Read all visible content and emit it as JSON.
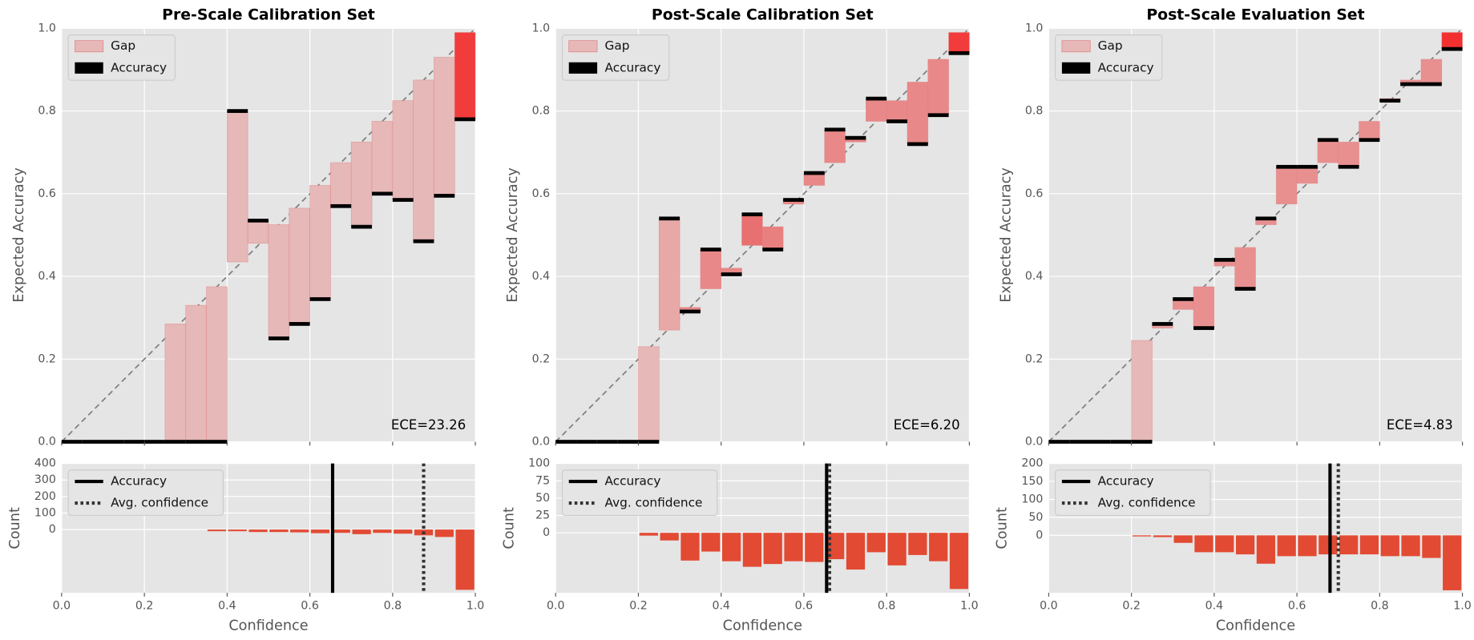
{
  "chart_data": [
    {
      "type": "reliability",
      "title": "Pre-Scale Calibration Set",
      "ylabel": "Expected Accuracy",
      "ece_label": "ECE=23.26",
      "legend": [
        "Gap",
        "Accuracy"
      ],
      "gap_legend_color": "#e6b8b8",
      "accuracy_color": "#000000",
      "bins": [
        0,
        0.05,
        0.1,
        0.15,
        0.2,
        0.25,
        0.3,
        0.35,
        0.4,
        0.45,
        0.5,
        0.55,
        0.6,
        0.65,
        0.7,
        0.75,
        0.8,
        0.85,
        0.9,
        0.95,
        1.0
      ],
      "accuracy": [
        0,
        0,
        0,
        0,
        0,
        0,
        0,
        0,
        0.8,
        0.535,
        0.25,
        0.285,
        0.345,
        0.57,
        0.52,
        0.6,
        0.585,
        0.485,
        0.595,
        0.78
      ],
      "confidence": [
        null,
        null,
        null,
        null,
        null,
        0.285,
        0.33,
        0.375,
        0.435,
        0.48,
        0.525,
        0.565,
        0.62,
        0.675,
        0.725,
        0.775,
        0.825,
        0.875,
        0.93,
        0.99
      ],
      "gap_colors": [
        null,
        null,
        null,
        null,
        null,
        "#e6b8b8",
        "#e6b8b8",
        "#e6b8b8",
        "#e6b8b8",
        "#e6b8b8",
        "#e6b8b8",
        "#e6b8b8",
        "#e6b8b8",
        "#e6b8b8",
        "#e6b8b8",
        "#e6b8b8",
        "#e6b8b8",
        "#e6b8b8",
        "#e6b8b8",
        "#f23b3b"
      ],
      "xlim": [
        0,
        1
      ],
      "ylim": [
        0,
        1
      ],
      "xticks": [
        {
          "value": 0,
          "label": "0.0"
        },
        {
          "value": 0.2,
          "label": "0.2"
        },
        {
          "value": 0.4,
          "label": "0.4"
        },
        {
          "value": 0.6,
          "label": "0.6"
        },
        {
          "value": 0.8,
          "label": "0.8"
        },
        {
          "value": 1,
          "label": "1.0"
        }
      ],
      "yticks": [
        {
          "value": 0,
          "label": "0.0"
        },
        {
          "value": 0.2,
          "label": "0.2"
        },
        {
          "value": 0.4,
          "label": "0.4"
        },
        {
          "value": 0.6,
          "label": "0.6"
        },
        {
          "value": 0.8,
          "label": "0.8"
        },
        {
          "value": 1,
          "label": "1.0"
        }
      ],
      "hist": {
        "type": "histogram",
        "xlabel": "Confidence",
        "ylabel": "Count",
        "color": "#e24a33",
        "counts": [
          0,
          0,
          0,
          0,
          0,
          0,
          0,
          -10,
          -10,
          -15,
          -15,
          -17,
          -22,
          -20,
          -28,
          -20,
          -25,
          -35,
          -45,
          -365
        ],
        "ylim": [
          -383,
          400
        ],
        "yticks": [
          0,
          100,
          200,
          300,
          400
        ],
        "accuracy": 0.655,
        "avg_confidence": 0.875,
        "legend": [
          "Accuracy",
          "Avg. confidence"
        ]
      }
    },
    {
      "type": "reliability",
      "title": "Post-Scale Calibration Set",
      "ylabel": "Expected Accuracy",
      "ece_label": "ECE=6.20",
      "legend": [
        "Gap",
        "Accuracy"
      ],
      "gap_legend_color": "#e6b8b8",
      "accuracy_color": "#000000",
      "bins": [
        0,
        0.05,
        0.1,
        0.15,
        0.2,
        0.25,
        0.3,
        0.35,
        0.4,
        0.45,
        0.5,
        0.55,
        0.6,
        0.65,
        0.7,
        0.75,
        0.8,
        0.85,
        0.9,
        0.95,
        1.0
      ],
      "accuracy": [
        0,
        0,
        0,
        0,
        0,
        0.54,
        0.315,
        0.465,
        0.405,
        0.55,
        0.465,
        0.585,
        0.65,
        0.755,
        0.735,
        0.83,
        0.775,
        0.72,
        0.79,
        0.94
      ],
      "confidence": [
        null,
        null,
        null,
        null,
        0.23,
        0.27,
        0.325,
        0.37,
        0.42,
        0.475,
        0.52,
        0.575,
        0.62,
        0.675,
        0.725,
        0.775,
        0.825,
        0.87,
        0.925,
        0.99
      ],
      "gap_colors": [
        null,
        null,
        null,
        null,
        "#e6b8b8",
        "#e8a8a8",
        "#e88888",
        "#e88888",
        "#e88888",
        "#e87070",
        "#e88080",
        "#e88888",
        "#e88888",
        "#e88888",
        "#e88888",
        "#e88888",
        "#e88888",
        "#e88888",
        "#e88888",
        "#f23b3b"
      ],
      "xlim": [
        0,
        1
      ],
      "ylim": [
        0,
        1
      ],
      "xticks": [
        {
          "value": 0,
          "label": "0.0"
        },
        {
          "value": 0.2,
          "label": "0.2"
        },
        {
          "value": 0.4,
          "label": "0.4"
        },
        {
          "value": 0.6,
          "label": "0.6"
        },
        {
          "value": 0.8,
          "label": "0.8"
        },
        {
          "value": 1,
          "label": "1.0"
        }
      ],
      "yticks": [
        {
          "value": 0,
          "label": "0.0"
        },
        {
          "value": 0.2,
          "label": "0.2"
        },
        {
          "value": 0.4,
          "label": "0.4"
        },
        {
          "value": 0.6,
          "label": "0.6"
        },
        {
          "value": 0.8,
          "label": "0.8"
        },
        {
          "value": 1,
          "label": "1.0"
        }
      ],
      "hist": {
        "type": "histogram",
        "xlabel": "Confidence",
        "ylabel": "Count",
        "color": "#e24a33",
        "counts": [
          0,
          0,
          0,
          0,
          -4,
          -11,
          -40,
          -27,
          -41,
          -49,
          -45,
          -41,
          -42,
          -38,
          -53,
          -28,
          -47,
          -32,
          -41,
          -81
        ],
        "ylim": [
          -86.5,
          100
        ],
        "yticks": [
          0,
          25,
          50,
          75,
          100
        ],
        "accuracy": 0.655,
        "avg_confidence": 0.662,
        "legend": [
          "Accuracy",
          "Avg. confidence"
        ]
      }
    },
    {
      "type": "reliability",
      "title": "Post-Scale Evaluation Set",
      "ylabel": "Expected Accuracy",
      "ece_label": "ECE=4.83",
      "legend": [
        "Gap",
        "Accuracy"
      ],
      "gap_legend_color": "#e6b8b8",
      "accuracy_color": "#000000",
      "bins": [
        0,
        0.05,
        0.1,
        0.15,
        0.2,
        0.25,
        0.3,
        0.35,
        0.4,
        0.45,
        0.5,
        0.55,
        0.6,
        0.65,
        0.7,
        0.75,
        0.8,
        0.85,
        0.9,
        0.95,
        1.0
      ],
      "accuracy": [
        0,
        0,
        0,
        0,
        0,
        0.285,
        0.345,
        0.275,
        0.44,
        0.37,
        0.54,
        0.665,
        0.665,
        0.73,
        0.665,
        0.73,
        0.825,
        0.865,
        0.865,
        0.95
      ],
      "confidence": [
        null,
        null,
        null,
        null,
        0.245,
        0.275,
        0.32,
        0.375,
        0.425,
        0.47,
        0.525,
        0.575,
        0.625,
        0.675,
        0.725,
        0.775,
        0.83,
        0.875,
        0.925,
        0.99
      ],
      "gap_colors": [
        null,
        null,
        null,
        null,
        "#e6b8b8",
        "#e8a0a0",
        "#e89090",
        "#e89090",
        "#e89090",
        "#e89090",
        "#e89090",
        "#e89090",
        "#e89090",
        "#e89090",
        "#e89090",
        "#e89090",
        "#e89090",
        "#e89090",
        "#e89090",
        "#f23030"
      ],
      "xlim": [
        0,
        1
      ],
      "ylim": [
        0,
        1
      ],
      "xticks": [
        {
          "value": 0,
          "label": "0.0"
        },
        {
          "value": 0.2,
          "label": "0.2"
        },
        {
          "value": 0.4,
          "label": "0.4"
        },
        {
          "value": 0.6,
          "label": "0.6"
        },
        {
          "value": 0.8,
          "label": "0.8"
        },
        {
          "value": 1,
          "label": "1.0"
        }
      ],
      "yticks": [
        {
          "value": 0,
          "label": "0.0"
        },
        {
          "value": 0.2,
          "label": "0.2"
        },
        {
          "value": 0.4,
          "label": "0.4"
        },
        {
          "value": 0.6,
          "label": "0.6"
        },
        {
          "value": 0.8,
          "label": "0.8"
        },
        {
          "value": 1,
          "label": "1.0"
        }
      ],
      "hist": {
        "type": "histogram",
        "xlabel": "Confidence",
        "ylabel": "Count",
        "color": "#e24a33",
        "counts": [
          0,
          0,
          0,
          0,
          -3,
          -5,
          -21,
          -47,
          -47,
          -53,
          -79,
          -58,
          -58,
          -53,
          -53,
          -53,
          -58,
          -58,
          -63,
          -153
        ],
        "ylim": [
          -160,
          200
        ],
        "yticks": [
          0,
          50,
          100,
          150,
          200
        ],
        "accuracy": 0.68,
        "avg_confidence": 0.7,
        "legend": [
          "Accuracy",
          "Avg. confidence"
        ]
      }
    }
  ]
}
